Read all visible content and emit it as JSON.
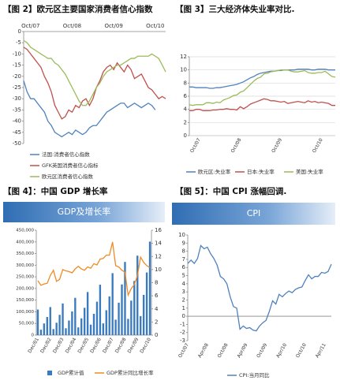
{
  "chart_data": [
    {
      "type": "line",
      "title": "【图 2】欧元区主要国家消费者信心指数",
      "categories": [
        null,
        null,
        "Oct/07",
        null,
        null,
        null,
        null,
        null,
        null,
        null,
        null,
        null,
        null,
        null,
        "Oct/08",
        null,
        null,
        null,
        null,
        null,
        null,
        null,
        null,
        null,
        null,
        null,
        "Oct/09",
        null,
        null,
        null,
        null,
        null,
        null,
        null,
        null,
        null,
        null,
        null,
        "Oct/10",
        null,
        null,
        null
      ],
      "ylim": [
        -50,
        0
      ],
      "yticks": [
        0,
        -5,
        -10,
        -15,
        -20,
        -25,
        -30,
        -35,
        -40,
        -45,
        -50
      ],
      "grid": false,
      "series": [
        {
          "name": "法国:消费者信心指数",
          "color": "#4f81bd",
          "values": [
            -22,
            -27,
            -30,
            -30,
            -32,
            -34,
            -36,
            -40,
            -42,
            -45,
            -46,
            -47,
            -46,
            -45,
            -46,
            -44,
            -45,
            -46,
            -45,
            -43,
            -42,
            -42,
            -40,
            -38,
            -36,
            -35,
            -34,
            -33,
            -32,
            -32,
            -34,
            -33,
            -32,
            -33,
            -34,
            -33,
            -32,
            -33,
            -35,
            null,
            null,
            null
          ]
        },
        {
          "name": "GFK英国消费者信心指标",
          "color": "#c0504d",
          "values": [
            -7,
            -8,
            -10,
            -12,
            -14,
            -16,
            -20,
            -23,
            -27,
            -33,
            -36,
            -39,
            -38,
            -35,
            -36,
            -33,
            -34,
            -31,
            -30,
            -33,
            -30,
            -25,
            -22,
            -18,
            -16,
            -15,
            -17,
            -14,
            -16,
            -18,
            -15,
            -17,
            -21,
            -20,
            -19,
            -22,
            -25,
            -26,
            -28,
            -30,
            -29,
            -30
          ]
        },
        {
          "name": "欧元区消费者信心指数",
          "color": "#9bbb59",
          "values": [
            -4,
            -5,
            -7,
            -8,
            -9,
            -10,
            -11,
            -12,
            -12,
            -14,
            -15,
            -17,
            -19,
            -22,
            -25,
            -28,
            -31,
            -33,
            -33,
            -31,
            -28,
            -25,
            -23,
            -20,
            -18,
            -17,
            -16,
            -15,
            -15,
            -14,
            -13,
            -12,
            -12,
            -11,
            -11,
            -11,
            -11,
            -10,
            -11,
            -12,
            -15,
            -18
          ]
        }
      ]
    },
    {
      "type": "line",
      "title": "【图 3】三大经济体失业率对比.",
      "categories": [
        null,
        null,
        null,
        "Oct/07",
        null,
        null,
        null,
        null,
        null,
        null,
        null,
        null,
        null,
        null,
        null,
        "Oct/08",
        null,
        null,
        null,
        null,
        null,
        null,
        null,
        null,
        null,
        null,
        null,
        "Oct/09",
        null,
        null,
        null,
        null,
        null,
        null,
        null,
        null,
        null,
        null,
        null,
        "Oct/10",
        null,
        null,
        null,
        null
      ],
      "ylim": [
        0,
        12
      ],
      "yticks": [
        0,
        2,
        4,
        6,
        8,
        10,
        12
      ],
      "grid": true,
      "series": [
        {
          "name": "欧元区:失业率",
          "color": "#4f81bd",
          "values": [
            7.4,
            7.4,
            7.3,
            7.3,
            7.3,
            7.3,
            7.2,
            7.2,
            7.3,
            7.3,
            7.4,
            7.5,
            7.6,
            7.7,
            7.8,
            8.0,
            8.2,
            8.5,
            8.8,
            9.0,
            9.3,
            9.5,
            9.6,
            9.7,
            9.8,
            9.8,
            9.9,
            9.9,
            10.0,
            10.0,
            10.0,
            10.0,
            10.1,
            10.1,
            10.1,
            10.1,
            10.0,
            10.0,
            10.1,
            10.1,
            10.1,
            10.0,
            10.0,
            10.0
          ]
        },
        {
          "name": "日本:失业率",
          "color": "#c0504d",
          "values": [
            3.8,
            3.8,
            4.0,
            4.0,
            3.8,
            3.8,
            3.8,
            3.9,
            3.9,
            4.0,
            4.0,
            4.1,
            4.0,
            4.0,
            3.9,
            4.4,
            4.1,
            4.4,
            4.8,
            5.0,
            5.2,
            5.4,
            5.6,
            5.5,
            5.3,
            5.3,
            5.2,
            5.1,
            5.2,
            4.9,
            5.0,
            5.1,
            5.2,
            5.1,
            5.0,
            5.3,
            5.1,
            5.2,
            5.0,
            5.1,
            5.0,
            4.9,
            4.6,
            4.6
          ]
        },
        {
          "name": "美国:失业率",
          "color": "#9bbb59",
          "values": [
            4.7,
            4.6,
            4.7,
            4.7,
            4.7,
            5.0,
            5.0,
            4.9,
            5.1,
            5.0,
            5.4,
            5.6,
            5.8,
            6.1,
            6.2,
            6.6,
            6.8,
            7.3,
            7.8,
            8.3,
            8.7,
            8.9,
            9.4,
            9.5,
            9.7,
            9.8,
            9.9,
            10.0,
            10.0,
            10.0,
            9.8,
            9.7,
            9.7,
            9.8,
            9.9,
            9.6,
            9.5,
            9.5,
            9.6,
            9.6,
            9.8,
            9.4,
            9.0,
            8.9
          ]
        }
      ]
    },
    {
      "type": "combo",
      "title": "【图 4】：中国 GDP 增长率",
      "subtitle": "GDP及增长率",
      "categories": [
        "Dec/01",
        null,
        null,
        null,
        "Dec/02",
        null,
        null,
        null,
        "Dec/03",
        null,
        null,
        null,
        "Dec/04",
        null,
        null,
        null,
        "Dec/05",
        null,
        null,
        null,
        "Dec/06",
        null,
        null,
        null,
        "Dec/07",
        null,
        null,
        null,
        "Dec/08",
        null,
        null,
        null,
        "Dec/09",
        null,
        null,
        null,
        "Dec/10"
      ],
      "ylim": [
        0,
        450000
      ],
      "yticks": [
        0,
        {
          "value": 50000,
          "label": "50,000"
        },
        {
          "value": 100000,
          "label": "100,000"
        },
        {
          "value": 150000,
          "label": "150,000"
        },
        {
          "value": 200000,
          "label": "200,000"
        },
        {
          "value": 250000,
          "label": "250,000"
        },
        {
          "value": 300000,
          "label": "300,000"
        },
        {
          "value": 350000,
          "label": "350,000"
        },
        {
          "value": 400000,
          "label": "400,000"
        },
        {
          "value": 450000,
          "label": "450,000"
        }
      ],
      "y2lim": [
        0,
        16
      ],
      "y2ticks": [
        0,
        2,
        4,
        6,
        8,
        10,
        12,
        14,
        16
      ],
      "grid": false,
      "series": [
        {
          "name": "GDP累计值",
          "color": "#3a7bbf",
          "type": "bar",
          "values": [
            109655,
            23300,
            50100,
            77700,
            120300,
            25900,
            53100,
            87000,
            135800,
            29400,
            62600,
            101600,
            159900,
            33100,
            72000,
            117200,
            184900,
            44900,
            91400,
            143600,
            216300,
            50300,
            106800,
            166000,
            265800,
            66300,
            139200,
            217500,
            314000,
            69800,
            148000,
            232300,
            340900,
            81600,
            172800,
            268700,
            401200
          ]
        },
        {
          "name": "GDP累计同比增长率",
          "color": "#f08a24",
          "type": "line",
          "axis": "y2",
          "values": [
            8.3,
            7.6,
            7.8,
            7.9,
            9.1,
            9.9,
            8.2,
            8.5,
            10.0,
            9.8,
            9.7,
            9.5,
            10.1,
            10.5,
            10.1,
            9.9,
            10.4,
            10.2,
            10.9,
            10.7,
            11.6,
            11.7,
            12.2,
            12.2,
            14.2,
            10.6,
            10.4,
            9.9,
            9.6,
            6.1,
            7.1,
            7.7,
            9.1,
            11.9,
            11.1,
            10.6,
            10.3
          ]
        }
      ]
    },
    {
      "type": "line",
      "title": "【图 5】：中国 CPI 涨幅回调.",
      "subtitle": "CPI",
      "categories": [
        "Oct/07",
        null,
        null,
        null,
        null,
        null,
        "Apr/08",
        null,
        null,
        null,
        null,
        null,
        "Oct/08",
        null,
        null,
        null,
        null,
        null,
        "Apr/09",
        null,
        null,
        null,
        null,
        null,
        "Oct/09",
        null,
        null,
        null,
        null,
        null,
        "Apr/10",
        null,
        null,
        null,
        null,
        null,
        "Oct/10",
        null,
        null,
        null,
        null,
        null,
        "Apr/11",
        null,
        null
      ],
      "ylim": [
        -3,
        10
      ],
      "yticks": [
        -3,
        -2,
        -1,
        0,
        1,
        2,
        3,
        4,
        5,
        6,
        7,
        8,
        9,
        10
      ],
      "grid": false,
      "series": [
        {
          "name": "CPI:当月同比",
          "color": "#4f81bd",
          "values": [
            6.5,
            6.9,
            6.5,
            7.1,
            8.7,
            8.3,
            8.5,
            7.7,
            7.1,
            6.3,
            4.9,
            4.6,
            4.0,
            2.4,
            1.2,
            1.0,
            -1.6,
            -1.2,
            -1.5,
            -1.4,
            -1.7,
            -1.8,
            -1.2,
            -0.8,
            -0.5,
            0.6,
            1.9,
            1.5,
            2.7,
            2.4,
            2.8,
            3.1,
            2.9,
            3.3,
            3.5,
            3.6,
            4.4,
            5.1,
            4.6,
            4.9,
            4.9,
            5.4,
            5.3,
            5.5,
            6.4
          ]
        }
      ]
    }
  ]
}
